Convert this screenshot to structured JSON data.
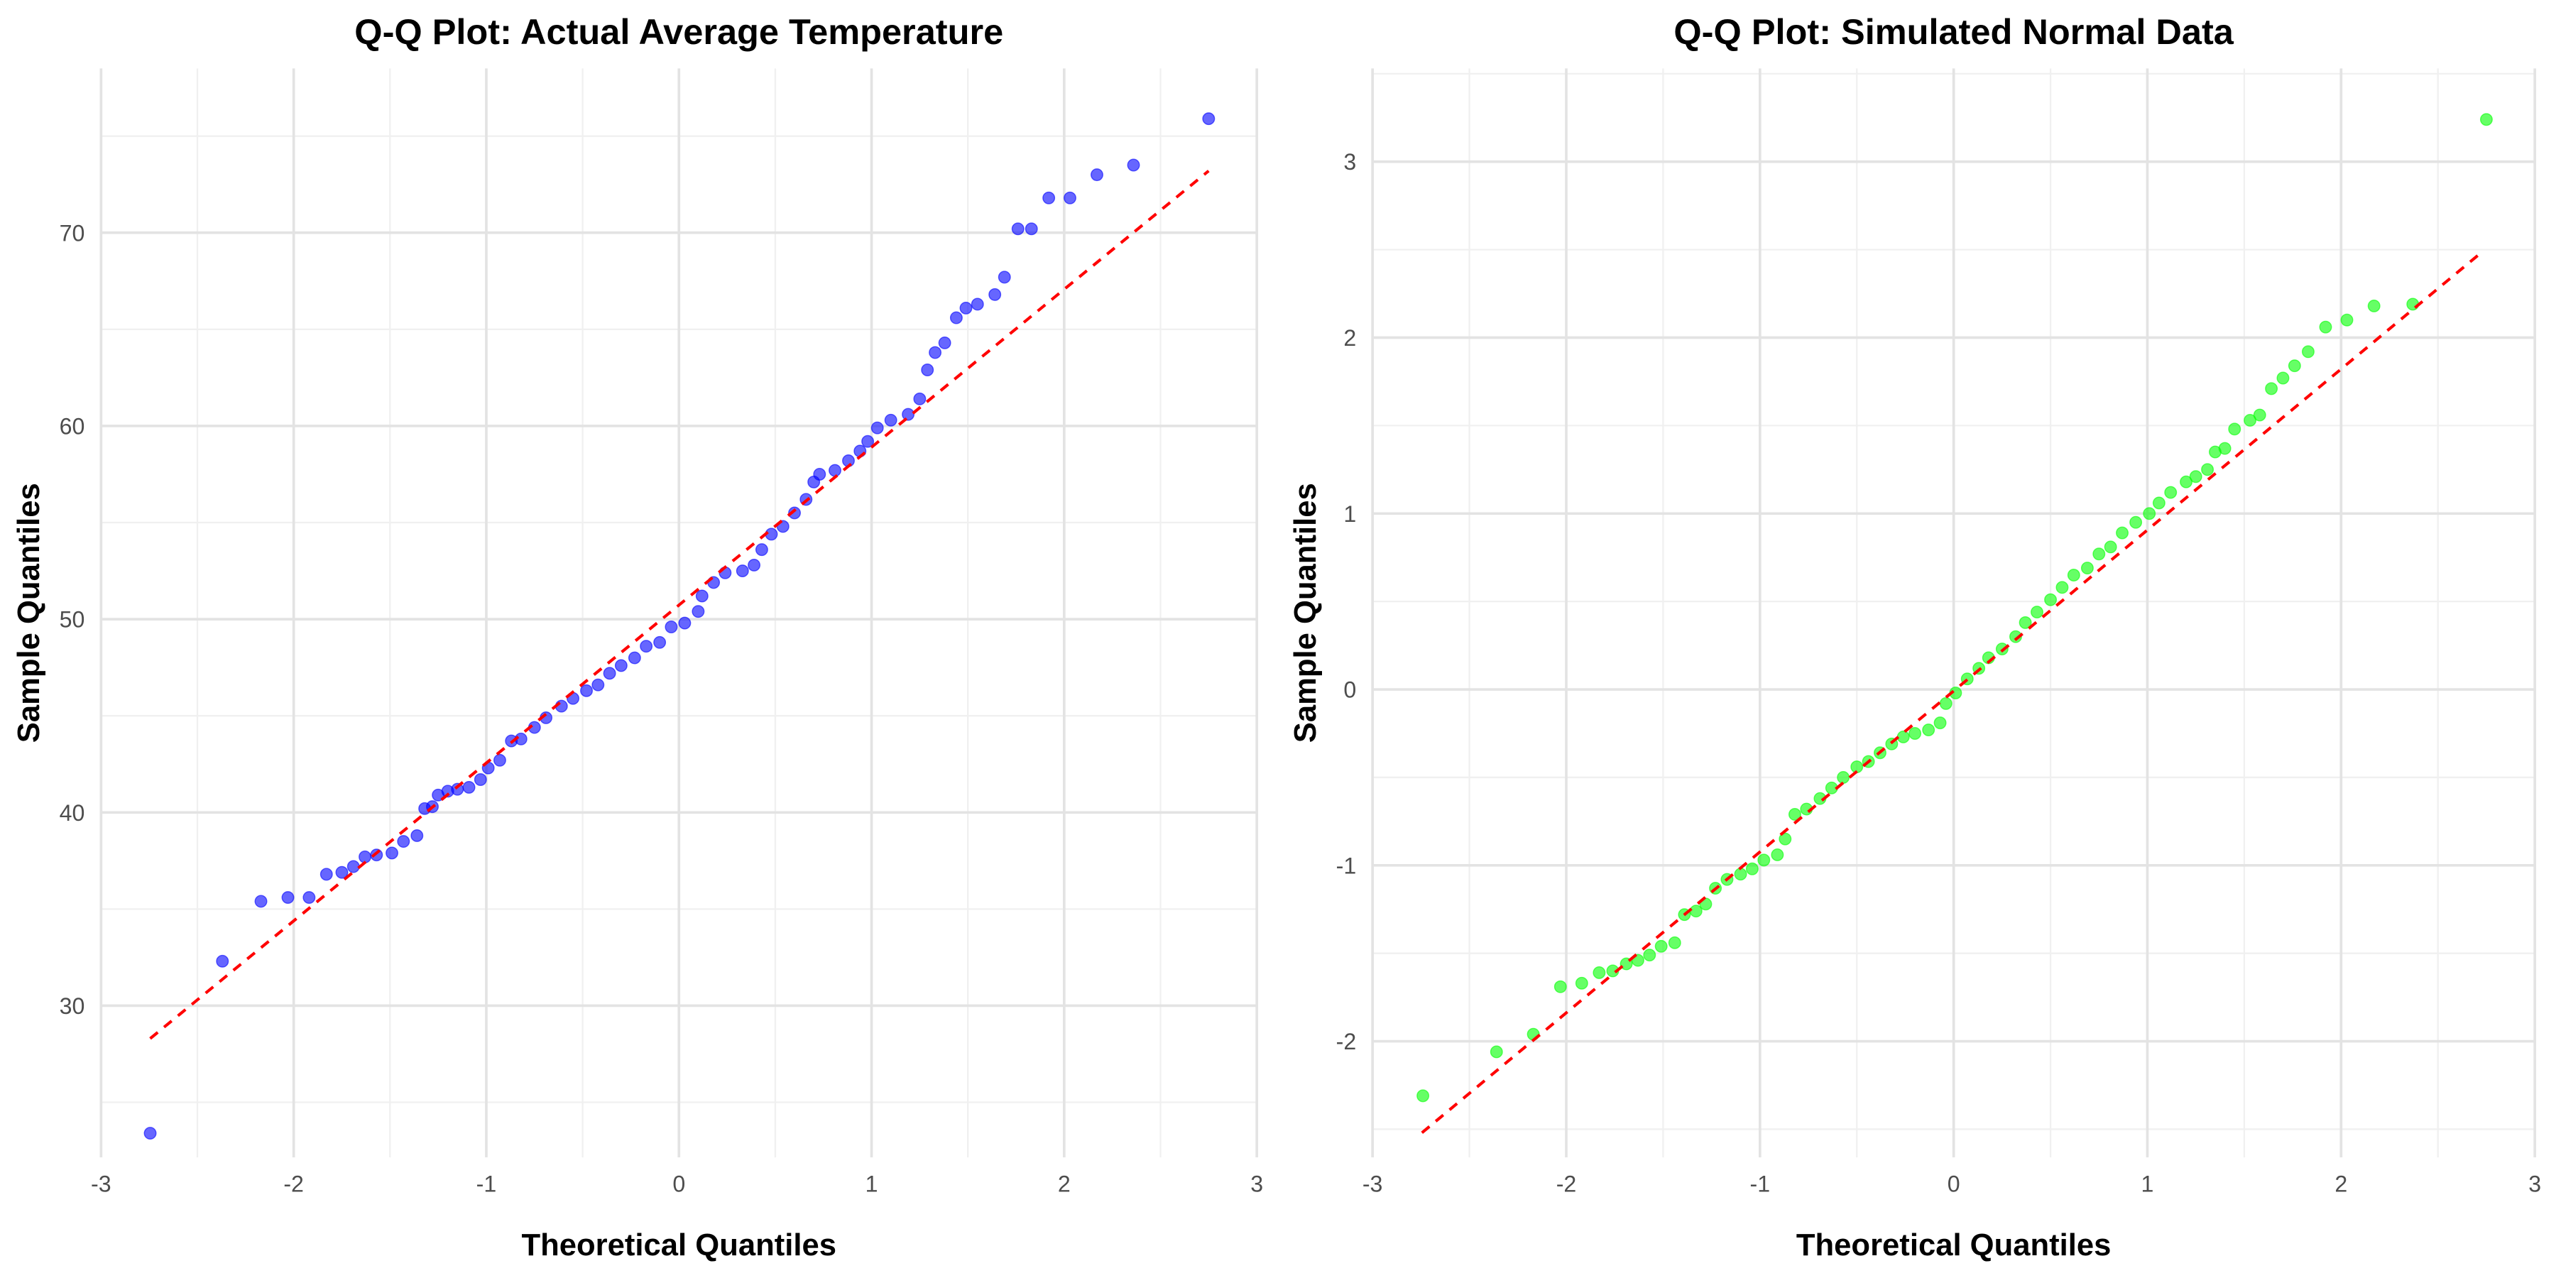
{
  "chart_data": [
    {
      "type": "scatter",
      "title": "Q-Q Plot: Actual Average Temperature",
      "x_label": "Theoretical Quantiles",
      "y_label": "Sample Quantiles",
      "xlim": [
        -3,
        3
      ],
      "ylim": [
        22.15,
        78.5
      ],
      "xticks": [
        -3,
        -2,
        -1,
        0,
        1,
        2,
        3
      ],
      "yticks": [
        30,
        40,
        50,
        60,
        70
      ],
      "x_minor_ticks": [
        -2.5,
        -1.5,
        -0.5,
        0.5,
        1.5,
        2.5
      ],
      "y_minor_ticks": [
        25,
        35,
        45,
        55,
        65,
        75
      ],
      "grid": true,
      "series": [
        {
          "color": "#0000ff",
          "alpha": 0.6,
          "x": [
            -2.745,
            -2.37,
            -2.17,
            -2.03,
            -1.92,
            -1.83,
            -1.75,
            -1.69,
            -1.63,
            -1.57,
            -1.49,
            -1.43,
            -1.36,
            -1.32,
            -1.28,
            -1.25,
            -1.2,
            -1.15,
            -1.09,
            -1.03,
            -0.99,
            -0.93,
            -0.87,
            -0.82,
            -0.75,
            -0.69,
            -0.61,
            -0.55,
            -0.48,
            -0.42,
            -0.36,
            -0.3,
            -0.23,
            -0.17,
            -0.1,
            -0.04,
            0.03,
            0.1,
            0.12,
            0.18,
            0.24,
            0.33,
            0.39,
            0.43,
            0.48,
            0.54,
            0.6,
            0.66,
            0.7,
            0.73,
            0.81,
            0.88,
            0.94,
            0.98,
            1.03,
            1.1,
            1.19,
            1.25,
            1.29,
            1.33,
            1.38,
            1.44,
            1.49,
            1.55,
            1.64,
            1.69,
            1.76,
            1.83,
            1.92,
            2.03,
            2.17,
            2.36,
            2.75
          ],
          "values": [
            23.4,
            32.3,
            35.4,
            35.6,
            35.6,
            36.8,
            36.9,
            37.2,
            37.7,
            37.8,
            37.9,
            38.5,
            38.8,
            40.2,
            40.3,
            40.9,
            41.1,
            41.2,
            41.3,
            41.7,
            42.3,
            42.7,
            43.7,
            43.8,
            44.4,
            44.9,
            45.5,
            45.9,
            46.3,
            46.6,
            47.2,
            47.6,
            48.0,
            48.6,
            48.8,
            49.6,
            49.8,
            50.4,
            51.2,
            51.9,
            52.4,
            52.5,
            52.8,
            53.6,
            54.4,
            54.8,
            55.5,
            56.2,
            57.1,
            57.5,
            57.7,
            58.2,
            58.7,
            59.2,
            59.9,
            60.3,
            60.6,
            61.4,
            62.9,
            63.8,
            64.3,
            65.6,
            66.1,
            66.3,
            66.8,
            67.7,
            70.2,
            70.2,
            71.8,
            71.8,
            73.0,
            73.5,
            75.9
          ]
        }
      ],
      "reference_line": {
        "x": [
          -2.745,
          2.75
        ],
        "values": [
          28.3,
          73.2
        ],
        "color": "#ff0000",
        "dashed": true
      }
    },
    {
      "type": "scatter",
      "title": "Q-Q Plot: Simulated Normal Data",
      "x_label": "Theoretical Quantiles",
      "y_label": "Sample Quantiles",
      "xlim": [
        -3,
        3
      ],
      "ylim": [
        -2.66,
        3.53
      ],
      "xticks": [
        -3,
        -2,
        -1,
        0,
        1,
        2,
        3
      ],
      "yticks": [
        -2,
        -1,
        0,
        1,
        2,
        3
      ],
      "x_minor_ticks": [
        -2.5,
        -1.5,
        -0.5,
        0.5,
        1.5,
        2.5
      ],
      "y_minor_ticks": [
        -2.5,
        -1.5,
        -0.5,
        0.5,
        1.5,
        2.5,
        3.5
      ],
      "grid": true,
      "series": [
        {
          "color": "#00ff00",
          "alpha": 0.6,
          "x": [
            -2.74,
            -2.36,
            -2.17,
            -2.03,
            -1.92,
            -1.83,
            -1.76,
            -1.69,
            -1.63,
            -1.57,
            -1.51,
            -1.44,
            -1.39,
            -1.33,
            -1.28,
            -1.23,
            -1.17,
            -1.1,
            -1.04,
            -0.98,
            -0.91,
            -0.87,
            -0.82,
            -0.76,
            -0.69,
            -0.63,
            -0.57,
            -0.5,
            -0.44,
            -0.38,
            -0.32,
            -0.26,
            -0.2,
            -0.13,
            -0.07,
            -0.04,
            0.01,
            0.07,
            0.13,
            0.18,
            0.25,
            0.32,
            0.37,
            0.43,
            0.5,
            0.56,
            0.62,
            0.69,
            0.75,
            0.81,
            0.87,
            0.94,
            1.01,
            1.06,
            1.12,
            1.2,
            1.25,
            1.31,
            1.35,
            1.4,
            1.45,
            1.53,
            1.58,
            1.64,
            1.7,
            1.76,
            1.83,
            1.92,
            2.03,
            2.17,
            2.37,
            2.75
          ],
          "values": [
            -2.31,
            -2.06,
            -1.96,
            -1.69,
            -1.67,
            -1.61,
            -1.6,
            -1.56,
            -1.54,
            -1.51,
            -1.46,
            -1.44,
            -1.28,
            -1.26,
            -1.22,
            -1.13,
            -1.08,
            -1.05,
            -1.02,
            -0.97,
            -0.94,
            -0.85,
            -0.71,
            -0.68,
            -0.62,
            -0.56,
            -0.5,
            -0.44,
            -0.41,
            -0.36,
            -0.31,
            -0.27,
            -0.25,
            -0.23,
            -0.19,
            -0.08,
            -0.02,
            0.06,
            0.12,
            0.18,
            0.23,
            0.3,
            0.38,
            0.44,
            0.51,
            0.58,
            0.65,
            0.69,
            0.77,
            0.81,
            0.89,
            0.95,
            1.0,
            1.06,
            1.12,
            1.18,
            1.21,
            1.25,
            1.35,
            1.37,
            1.48,
            1.53,
            1.56,
            1.71,
            1.77,
            1.84,
            1.92,
            2.06,
            2.1,
            2.18,
            2.19,
            3.24
          ]
        }
      ],
      "reference_line": {
        "x": [
          -2.745,
          2.72
        ],
        "values": [
          -2.52,
          2.48
        ],
        "color": "#ff0000",
        "dashed": true
      }
    }
  ]
}
